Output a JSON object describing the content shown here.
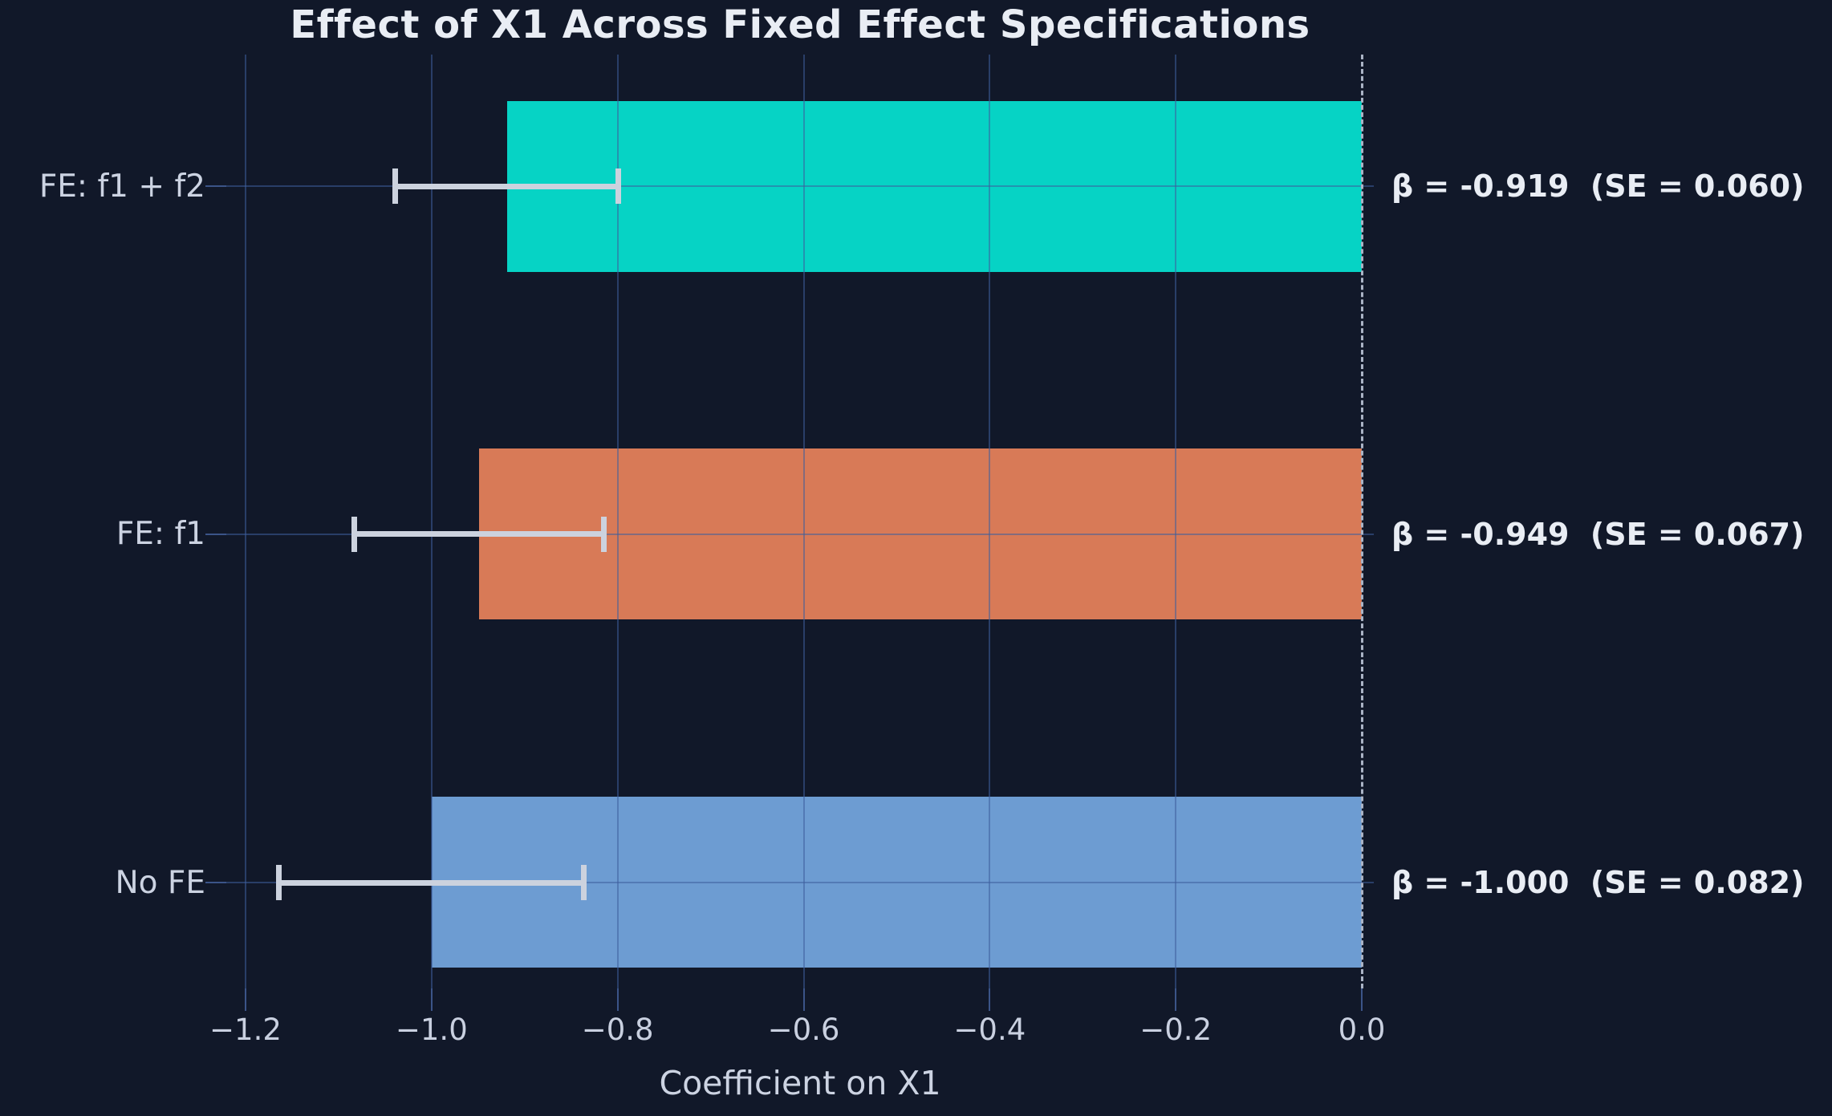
{
  "title": "Effect of X1 Across Fixed Effect Specifications",
  "chart_data": {
    "type": "bar",
    "orientation": "horizontal",
    "title": "Effect of X1 Across Fixed Effect Specifications",
    "xlabel": "Coefficient on X1",
    "ylabel": "",
    "xlim": [
      -1.2207,
      0.0129
    ],
    "grid": true,
    "zero_line": {
      "value": 0.0,
      "style": "dashed",
      "color": "#aab3c5"
    },
    "xticks": [
      {
        "value": -1.2,
        "label": "−1.2"
      },
      {
        "value": -1.0,
        "label": "−1.0"
      },
      {
        "value": -0.8,
        "label": "−0.8"
      },
      {
        "value": -0.6,
        "label": "−0.6"
      },
      {
        "value": -0.4,
        "label": "−0.4"
      },
      {
        "value": -0.2,
        "label": "−0.2"
      },
      {
        "value": 0.0,
        "label": "0.0"
      }
    ],
    "categories": [
      "FE: f1 + f2",
      "FE: f1",
      "No FE"
    ],
    "rows": [
      {
        "label": "FE: f1 + f2",
        "beta": -0.919,
        "se": 0.06,
        "error_low": -1.039,
        "error_high": -0.799,
        "color": "#06d3c5",
        "annotation": "β = -0.919  (SE = 0.060)"
      },
      {
        "label": "FE: f1",
        "beta": -0.949,
        "se": 0.067,
        "error_low": -1.083,
        "error_high": -0.815,
        "color": "#d87a57",
        "annotation": "β = -0.949  (SE = 0.067)"
      },
      {
        "label": "No FE",
        "beta": -1.0,
        "se": 0.082,
        "error_low": -1.164,
        "error_high": -0.836,
        "color": "#6d9cd2",
        "annotation": "β = -1.000  (SE = 0.082)"
      }
    ]
  },
  "colors": {
    "background": "#111829",
    "grid": "rgba(62,94,156,0.55)",
    "error_bar": "#ccd2de",
    "zero_line": "#aab3c5",
    "title_text": "#e9edf4",
    "tick_text": "#c9d0e0",
    "label_text": "#ccd3e2"
  }
}
